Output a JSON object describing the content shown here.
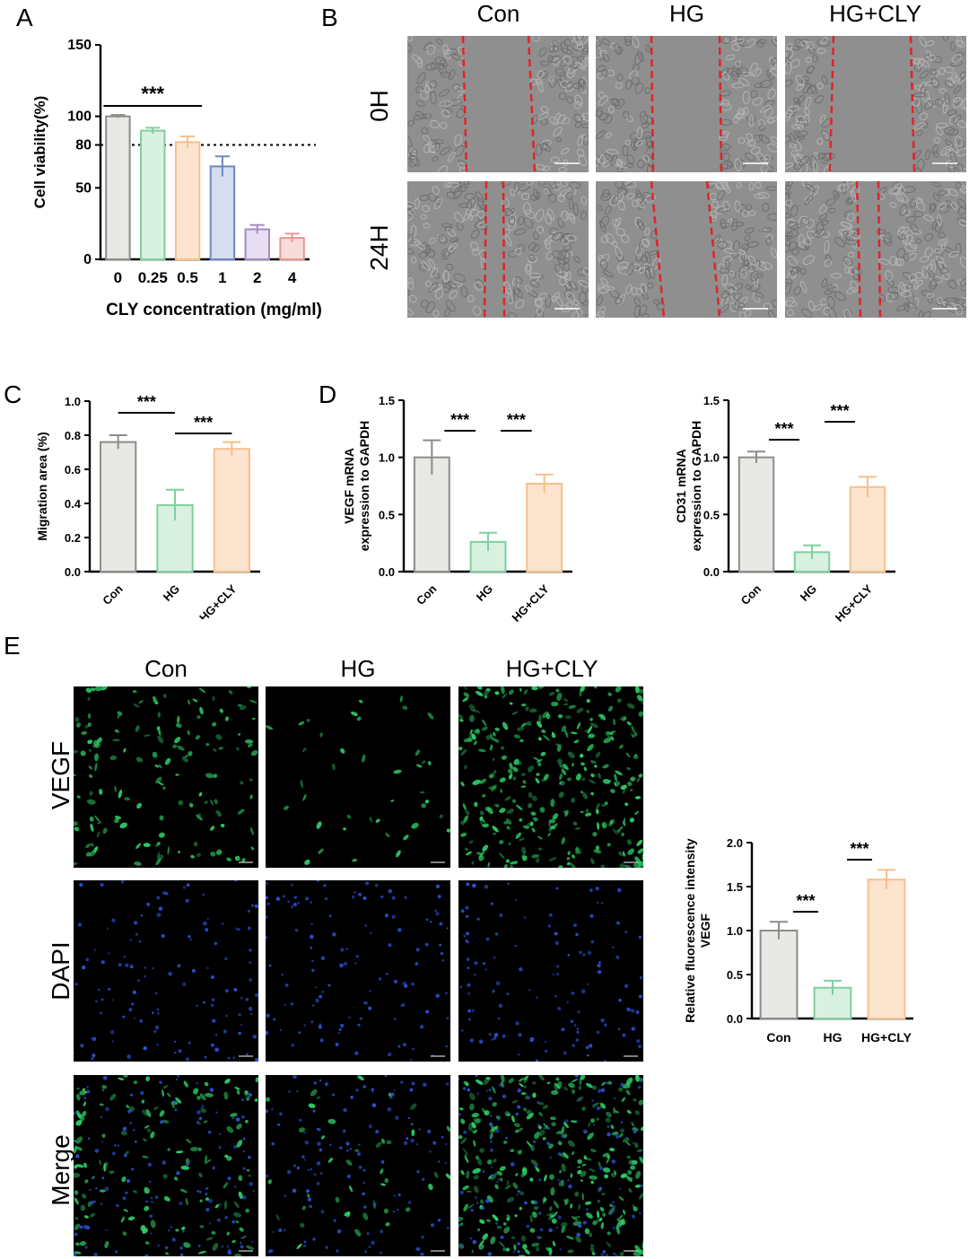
{
  "panels": {
    "A": "A",
    "B": "B",
    "C": "C",
    "D": "D",
    "E": "E"
  },
  "scratch": {
    "columns": [
      "Con",
      "HG",
      "HG+CLY"
    ],
    "rows": [
      "0H",
      "24H"
    ]
  },
  "if_images": {
    "columns": [
      "Con",
      "HG",
      "HG+CLY"
    ],
    "rows": [
      "VEGF",
      "DAPI",
      "Merge"
    ]
  },
  "colors": {
    "gray": "#8c8c8a",
    "gray_fill": "#e8e9e4",
    "green": "#7fcf9f",
    "green_fill": "#d9f1e1",
    "orange": "#f7bf8a",
    "orange_fill": "#fde4cf",
    "blue": "#6f86c8",
    "blue_fill": "#d6ddf1",
    "purple": "#a68ac4",
    "purple_fill": "#e7def1",
    "red": "#e99791",
    "red_fill": "#f8dcda",
    "scratch_line": "#e0242a",
    "if_green": "#2fd36a",
    "if_blue": "#2a4fd0"
  },
  "chart_data": [
    {
      "id": "A",
      "type": "bar",
      "xlabel": "CLY concentration (mg/ml)",
      "ylabel": "Cell viability(%)",
      "categories": [
        "0",
        "0.25",
        "0.5",
        "1",
        "2",
        "4"
      ],
      "values": [
        100,
        90,
        82,
        65,
        21,
        15
      ],
      "errors": [
        1,
        2,
        4,
        7,
        3,
        3
      ],
      "colors": [
        "gray",
        "green",
        "orange",
        "blue",
        "purple",
        "red"
      ],
      "ylim": [
        0,
        150
      ],
      "yticks": [
        0,
        50,
        80,
        100,
        150
      ],
      "reference_line": 80,
      "significance": [
        {
          "from": 0,
          "to": 2,
          "label": "***"
        }
      ]
    },
    {
      "id": "C",
      "type": "bar",
      "ylabel": "Migration area (%)",
      "categories": [
        "Con",
        "HG",
        "HG+CLY"
      ],
      "values": [
        0.76,
        0.39,
        0.72
      ],
      "errors": [
        0.04,
        0.09,
        0.04
      ],
      "colors": [
        "gray",
        "green",
        "orange"
      ],
      "ylim": [
        0,
        1.0
      ],
      "yticks": [
        0.0,
        0.2,
        0.4,
        0.6,
        0.8,
        1.0
      ],
      "significance": [
        {
          "from": 0,
          "to": 1,
          "label": "***"
        },
        {
          "from": 1,
          "to": 2,
          "label": "***"
        }
      ]
    },
    {
      "id": "D1",
      "type": "bar",
      "ylabel": "VEGF mRNA expression to GAPDH",
      "categories": [
        "Con",
        "HG",
        "HG+CLY"
      ],
      "values": [
        1.0,
        0.26,
        0.77
      ],
      "errors": [
        0.15,
        0.08,
        0.08
      ],
      "colors": [
        "gray",
        "green",
        "orange"
      ],
      "ylim": [
        0,
        1.5
      ],
      "yticks": [
        0.0,
        0.5,
        1.0,
        1.5
      ],
      "significance": [
        {
          "from": 0,
          "to": 1,
          "label": "***"
        },
        {
          "from": 1,
          "to": 2,
          "label": "***"
        }
      ]
    },
    {
      "id": "D2",
      "type": "bar",
      "ylabel": "CD31 mRNA expression to GAPDH",
      "categories": [
        "Con",
        "HG",
        "HG+CLY"
      ],
      "values": [
        1.0,
        0.17,
        0.74
      ],
      "errors": [
        0.05,
        0.06,
        0.09
      ],
      "colors": [
        "gray",
        "green",
        "orange"
      ],
      "ylim": [
        0,
        1.5
      ],
      "yticks": [
        0.0,
        0.5,
        1.0,
        1.5
      ],
      "significance": [
        {
          "from": 0,
          "to": 1,
          "label": "***"
        },
        {
          "from": 1,
          "to": 2,
          "label": "***"
        }
      ]
    },
    {
      "id": "E",
      "type": "bar",
      "ylabel": "Relative fluorescence intensity VEGF",
      "categories": [
        "Con",
        "HG",
        "HG+CLY"
      ],
      "values": [
        1.0,
        0.35,
        1.58
      ],
      "errors": [
        0.1,
        0.08,
        0.11
      ],
      "colors": [
        "gray",
        "green",
        "orange"
      ],
      "ylim": [
        0,
        2.0
      ],
      "yticks": [
        0.0,
        0.5,
        1.0,
        1.5,
        2.0
      ],
      "significance": [
        {
          "from": 0,
          "to": 1,
          "label": "***"
        },
        {
          "from": 1,
          "to": 2,
          "label": "***"
        }
      ]
    }
  ]
}
